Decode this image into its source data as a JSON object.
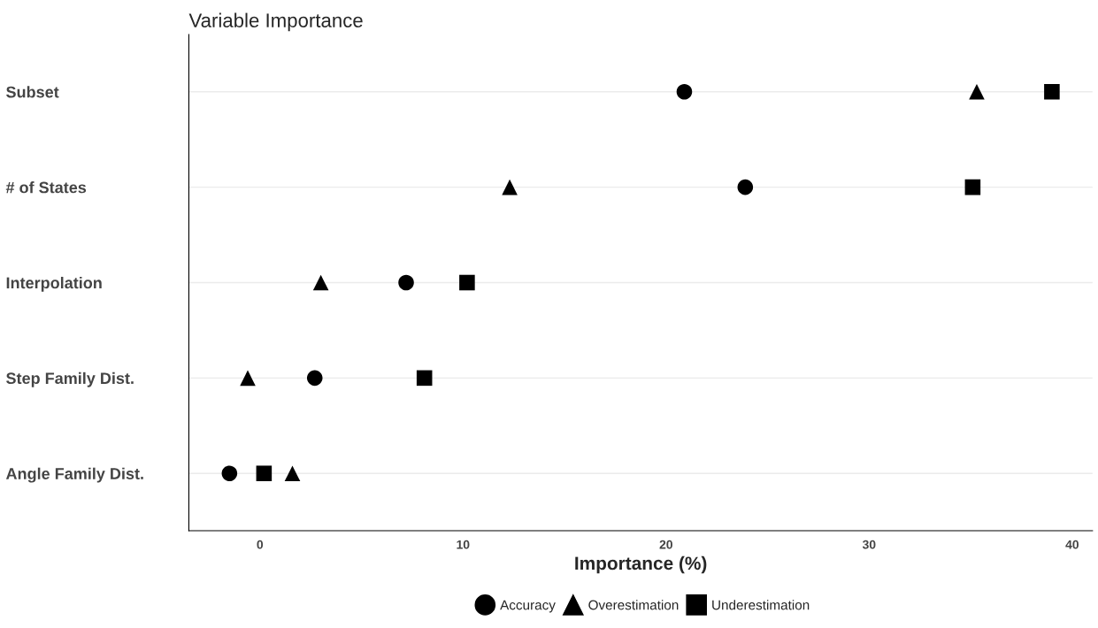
{
  "chart_data": {
    "type": "scatter",
    "title": "Variable Importance",
    "xlabel": "Importance (%)",
    "orientation": "horizontal",
    "categories": [
      "Subset",
      "# of States",
      "Interpolation",
      "Step Family Dist.",
      "Angle Family Dist."
    ],
    "series": [
      {
        "name": "Accuracy",
        "color": "#000000",
        "marker": "circle",
        "values": [
          20.9,
          23.9,
          7.2,
          2.7,
          -1.5
        ]
      },
      {
        "name": "Overestimation",
        "color": "#000000",
        "marker": "triangle",
        "values": [
          35.3,
          12.3,
          3.0,
          -0.6,
          1.6
        ]
      },
      {
        "name": "Underestimation",
        "color": "#000000",
        "marker": "square",
        "values": [
          39.0,
          35.1,
          10.2,
          8.1,
          0.2
        ]
      }
    ],
    "xlim": [
      -3.5,
      41.0
    ],
    "xticks": [
      0,
      10,
      20,
      30,
      40
    ],
    "grid": "y",
    "legend": "bottom"
  }
}
